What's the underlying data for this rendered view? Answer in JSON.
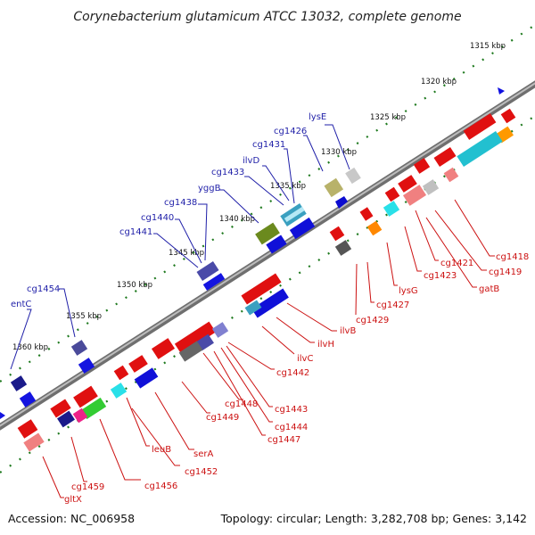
{
  "title": "Corynebacterium glutamicum ATCC 13032, complete genome",
  "footer": {
    "accession": "Accession: NC_006958",
    "summary": "Topology: circular; Length: 3,282,708 bp; Genes: 3,142"
  },
  "ticks": [
    "1315 kbp",
    "1320 kbp",
    "1325 kbp",
    "1330 kbp",
    "1335 kbp",
    "1340 kbp",
    "1345 kbp",
    "1350 kbp",
    "1355 kbp",
    "1360 kbp"
  ],
  "colors": {
    "forward_label": "#1f1fa8",
    "reverse_label": "#cc1111",
    "backbone": "#8a8a8a",
    "tick_green": "#1f7a1f"
  },
  "forward_labels": [
    "lysE",
    "cg1426",
    "cg1431",
    "ilvD",
    "cg1433",
    "yggB",
    "cg1438",
    "cg1440",
    "cg1441",
    "cg1454",
    "entC"
  ],
  "reverse_labels": [
    "cg1418",
    "cg1419",
    "gatB",
    "cg1421",
    "cg1423",
    "lysG",
    "cg1427",
    "cg1429",
    "ilvB",
    "ilvH",
    "ilvC",
    "cg1442",
    "cg1443",
    "cg1444",
    "cg1447",
    "cg1448",
    "cg1449",
    "serA",
    "cg1452",
    "leuB",
    "cg1456",
    "cg1459",
    "gltX"
  ]
}
